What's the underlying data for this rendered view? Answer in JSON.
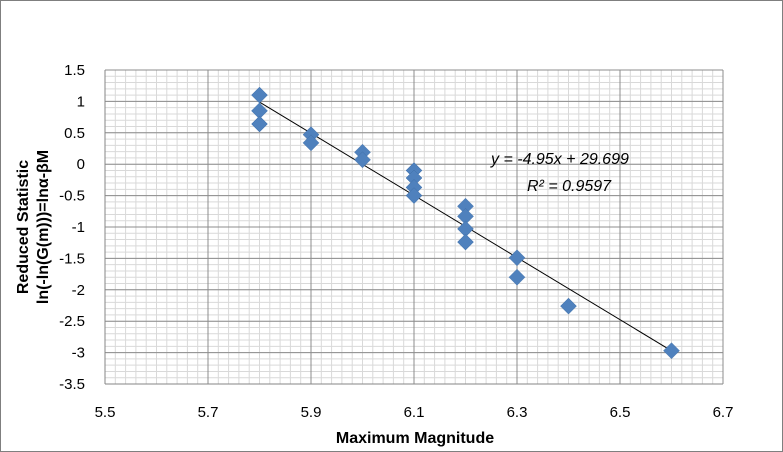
{
  "chart_data": {
    "type": "scatter",
    "xlabel": "Maximum Magnitude",
    "ylabel_lines": [
      "Reduced Statistic",
      "ln(-ln(G(m)))=lnα-βM"
    ],
    "xlim": [
      5.5,
      6.7
    ],
    "ylim": [
      -3.5,
      1.5
    ],
    "x_ticks": [
      "5.5",
      "5.7",
      "5.9",
      "6.1",
      "6.3",
      "6.5",
      "6.7"
    ],
    "y_ticks": [
      "1.5",
      "1",
      "0.5",
      "0",
      "-0.5",
      "-1",
      "-1.5",
      "-2",
      "-2.5",
      "-3",
      "-3.5"
    ],
    "x_major_step": 0.2,
    "x_minor_step": 0.02,
    "y_minor_step": 0.1,
    "grid": true,
    "marker": "diamond",
    "marker_color": "#4f81bd",
    "points": [
      {
        "x": 5.8,
        "y": 1.1
      },
      {
        "x": 5.8,
        "y": 0.85
      },
      {
        "x": 5.8,
        "y": 0.64
      },
      {
        "x": 5.9,
        "y": 0.47
      },
      {
        "x": 5.9,
        "y": 0.34
      },
      {
        "x": 6.0,
        "y": 0.19
      },
      {
        "x": 6.0,
        "y": 0.07
      },
      {
        "x": 6.1,
        "y": -0.1
      },
      {
        "x": 6.1,
        "y": -0.22
      },
      {
        "x": 6.1,
        "y": -0.37
      },
      {
        "x": 6.1,
        "y": -0.5
      },
      {
        "x": 6.2,
        "y": -0.67
      },
      {
        "x": 6.2,
        "y": -0.83
      },
      {
        "x": 6.2,
        "y": -1.03
      },
      {
        "x": 6.2,
        "y": -1.24
      },
      {
        "x": 6.3,
        "y": -1.49
      },
      {
        "x": 6.3,
        "y": -1.8
      },
      {
        "x": 6.4,
        "y": -2.26
      },
      {
        "x": 6.6,
        "y": -2.97
      }
    ],
    "trendline": {
      "slope": -4.95,
      "intercept": 29.699,
      "x_range": [
        5.8,
        6.6
      ],
      "color": "#000000"
    },
    "annotations": {
      "equation": "y = -4.95x + 29.699",
      "r_squared": "R² = 0.9597"
    }
  }
}
